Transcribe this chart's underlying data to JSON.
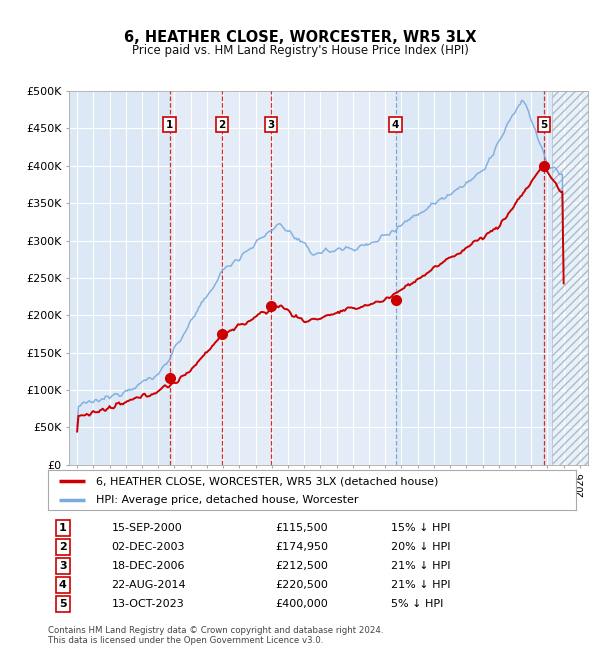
{
  "title": "6, HEATHER CLOSE, WORCESTER, WR5 3LX",
  "subtitle": "Price paid vs. HM Land Registry's House Price Index (HPI)",
  "footer": "Contains HM Land Registry data © Crown copyright and database right 2024.\nThis data is licensed under the Open Government Licence v3.0.",
  "legend_label_red": "6, HEATHER CLOSE, WORCESTER, WR5 3LX (detached house)",
  "legend_label_blue": "HPI: Average price, detached house, Worcester",
  "transactions": [
    {
      "num": 1,
      "date": "15-SEP-2000",
      "price": "£115,500",
      "pct": "15% ↓ HPI",
      "year": 2000.71,
      "price_val": 115500
    },
    {
      "num": 2,
      "date": "02-DEC-2003",
      "price": "£174,950",
      "pct": "20% ↓ HPI",
      "year": 2003.92,
      "price_val": 174950
    },
    {
      "num": 3,
      "date": "18-DEC-2006",
      "price": "£212,500",
      "pct": "21% ↓ HPI",
      "year": 2006.96,
      "price_val": 212500
    },
    {
      "num": 4,
      "date": "22-AUG-2014",
      "price": "£220,500",
      "pct": "21% ↓ HPI",
      "year": 2014.64,
      "price_val": 220500
    },
    {
      "num": 5,
      "date": "13-OCT-2023",
      "price": "£400,000",
      "pct": "5% ↓ HPI",
      "year": 2023.79,
      "price_val": 400000
    }
  ],
  "ylim": [
    0,
    500000
  ],
  "yticks": [
    0,
    50000,
    100000,
    150000,
    200000,
    250000,
    300000,
    350000,
    400000,
    450000,
    500000
  ],
  "ytick_labels": [
    "£0",
    "£50K",
    "£100K",
    "£150K",
    "£200K",
    "£250K",
    "£300K",
    "£350K",
    "£400K",
    "£450K",
    "£500K"
  ],
  "xlim_start": 1994.5,
  "xlim_end": 2026.5,
  "color_red": "#cc0000",
  "color_blue": "#7aaadd",
  "color_vline_red": "#cc0000",
  "color_vline_blue": "#5588bb",
  "bg_color": "#dce8f5",
  "bg_color_shaded": "#dce8f5",
  "hatch_color": "#b0bcc8",
  "grid_color": "#ffffff"
}
